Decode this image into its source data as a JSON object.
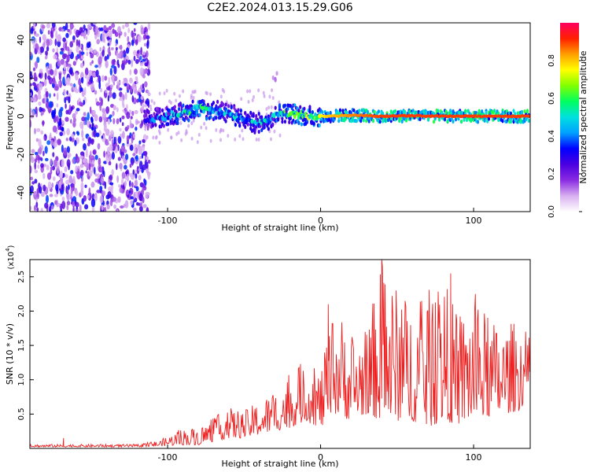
{
  "title": "C2E2.2024.013.15.29.G06",
  "chart_data": [
    {
      "type": "heatmap",
      "xlabel": "Height of straight line (km)",
      "ylabel": "Frequency (Hz)",
      "xlim": [
        -190,
        137
      ],
      "ylim": [
        -50,
        49
      ],
      "xticks": [
        -100,
        0,
        100
      ],
      "yticks": [
        -40,
        -20,
        0,
        20,
        40
      ],
      "colorbar": {
        "label": "Normalized spectral amplitude",
        "range": [
          0,
          1
        ],
        "ticks": [
          0.0,
          0.2,
          0.4,
          0.6,
          0.8
        ],
        "colors": [
          "#ffffff",
          "#d8b0f0",
          "#8a2be2",
          "#4b00e0",
          "#0000ff",
          "#00a0ff",
          "#00e0e0",
          "#00ff60",
          "#80ff00",
          "#ffff00",
          "#ffa000",
          "#ff2000",
          "#ff0060"
        ]
      },
      "ridge": {
        "x": [
          -115,
          -100,
          -90,
          -80,
          -70,
          -60,
          -50,
          -42,
          -35,
          -25,
          -15,
          -5,
          5,
          20,
          40,
          60,
          80,
          100,
          120,
          137
        ],
        "freq": [
          -2,
          0,
          2,
          4,
          3,
          2,
          -2,
          -4,
          -2,
          2,
          1,
          0,
          0,
          0.5,
          0,
          0.3,
          0,
          0,
          0,
          0
        ],
        "amplitude": [
          0.35,
          0.5,
          0.55,
          0.6,
          0.55,
          0.5,
          0.5,
          0.5,
          0.55,
          0.6,
          0.65,
          0.7,
          0.8,
          0.85,
          0.9,
          0.9,
          0.9,
          0.9,
          0.9,
          0.9
        ]
      },
      "features": [
        {
          "x": -30,
          "freq": 22,
          "amplitude": 0.15
        },
        {
          "x": -150,
          "freq": -4,
          "amplitude": 0.4
        },
        {
          "x": -170,
          "freq": -4,
          "amplitude": 0.35
        }
      ]
    },
    {
      "type": "line",
      "xlabel": "Height of straight line (km)",
      "ylabel": "SNR (10 * v/v)",
      "scale_label": "(x10",
      "scale_exponent": "4",
      "xlim": [
        -190,
        137
      ],
      "ylim": [
        0,
        2.75
      ],
      "xticks": [
        -100,
        0,
        100
      ],
      "yticks": [
        0.5,
        1.0,
        1.5,
        2.0,
        2.5
      ],
      "series": [
        {
          "color": "#ee2020",
          "envelope": {
            "x": [
              -190,
              -170,
              -120,
              -105,
              -100,
              -90,
              -80,
              -70,
              -60,
              -50,
              -40,
              -30,
              -20,
              -10,
              0,
              10,
              20,
              30,
              40,
              50,
              60,
              70,
              80,
              90,
              100,
              110,
              120,
              130,
              137
            ],
            "upper": [
              0.06,
              0.06,
              0.06,
              0.12,
              0.18,
              0.3,
              0.3,
              0.45,
              0.6,
              0.55,
              0.7,
              0.85,
              1.1,
              1.3,
              1.15,
              2.1,
              1.7,
              1.75,
              2.7,
              2.35,
              2.15,
              2.3,
              2.55,
              1.9,
              2.3,
              1.9,
              1.8,
              1.9,
              1.6
            ],
            "lower": [
              0.02,
              0.02,
              0.02,
              0.03,
              0.04,
              0.05,
              0.05,
              0.1,
              0.15,
              0.15,
              0.2,
              0.25,
              0.3,
              0.4,
              0.3,
              0.5,
              0.4,
              0.5,
              0.4,
              0.4,
              0.4,
              0.3,
              0.4,
              0.35,
              0.4,
              0.45,
              0.5,
              0.55,
              0.8
            ]
          },
          "spikes": [
            {
              "x": -168,
              "y": 0.15
            },
            {
              "x": 40,
              "y": 2.75
            },
            {
              "x": 5,
              "y": 2.1
            },
            {
              "x": 85,
              "y": 2.55
            }
          ]
        }
      ]
    }
  ]
}
